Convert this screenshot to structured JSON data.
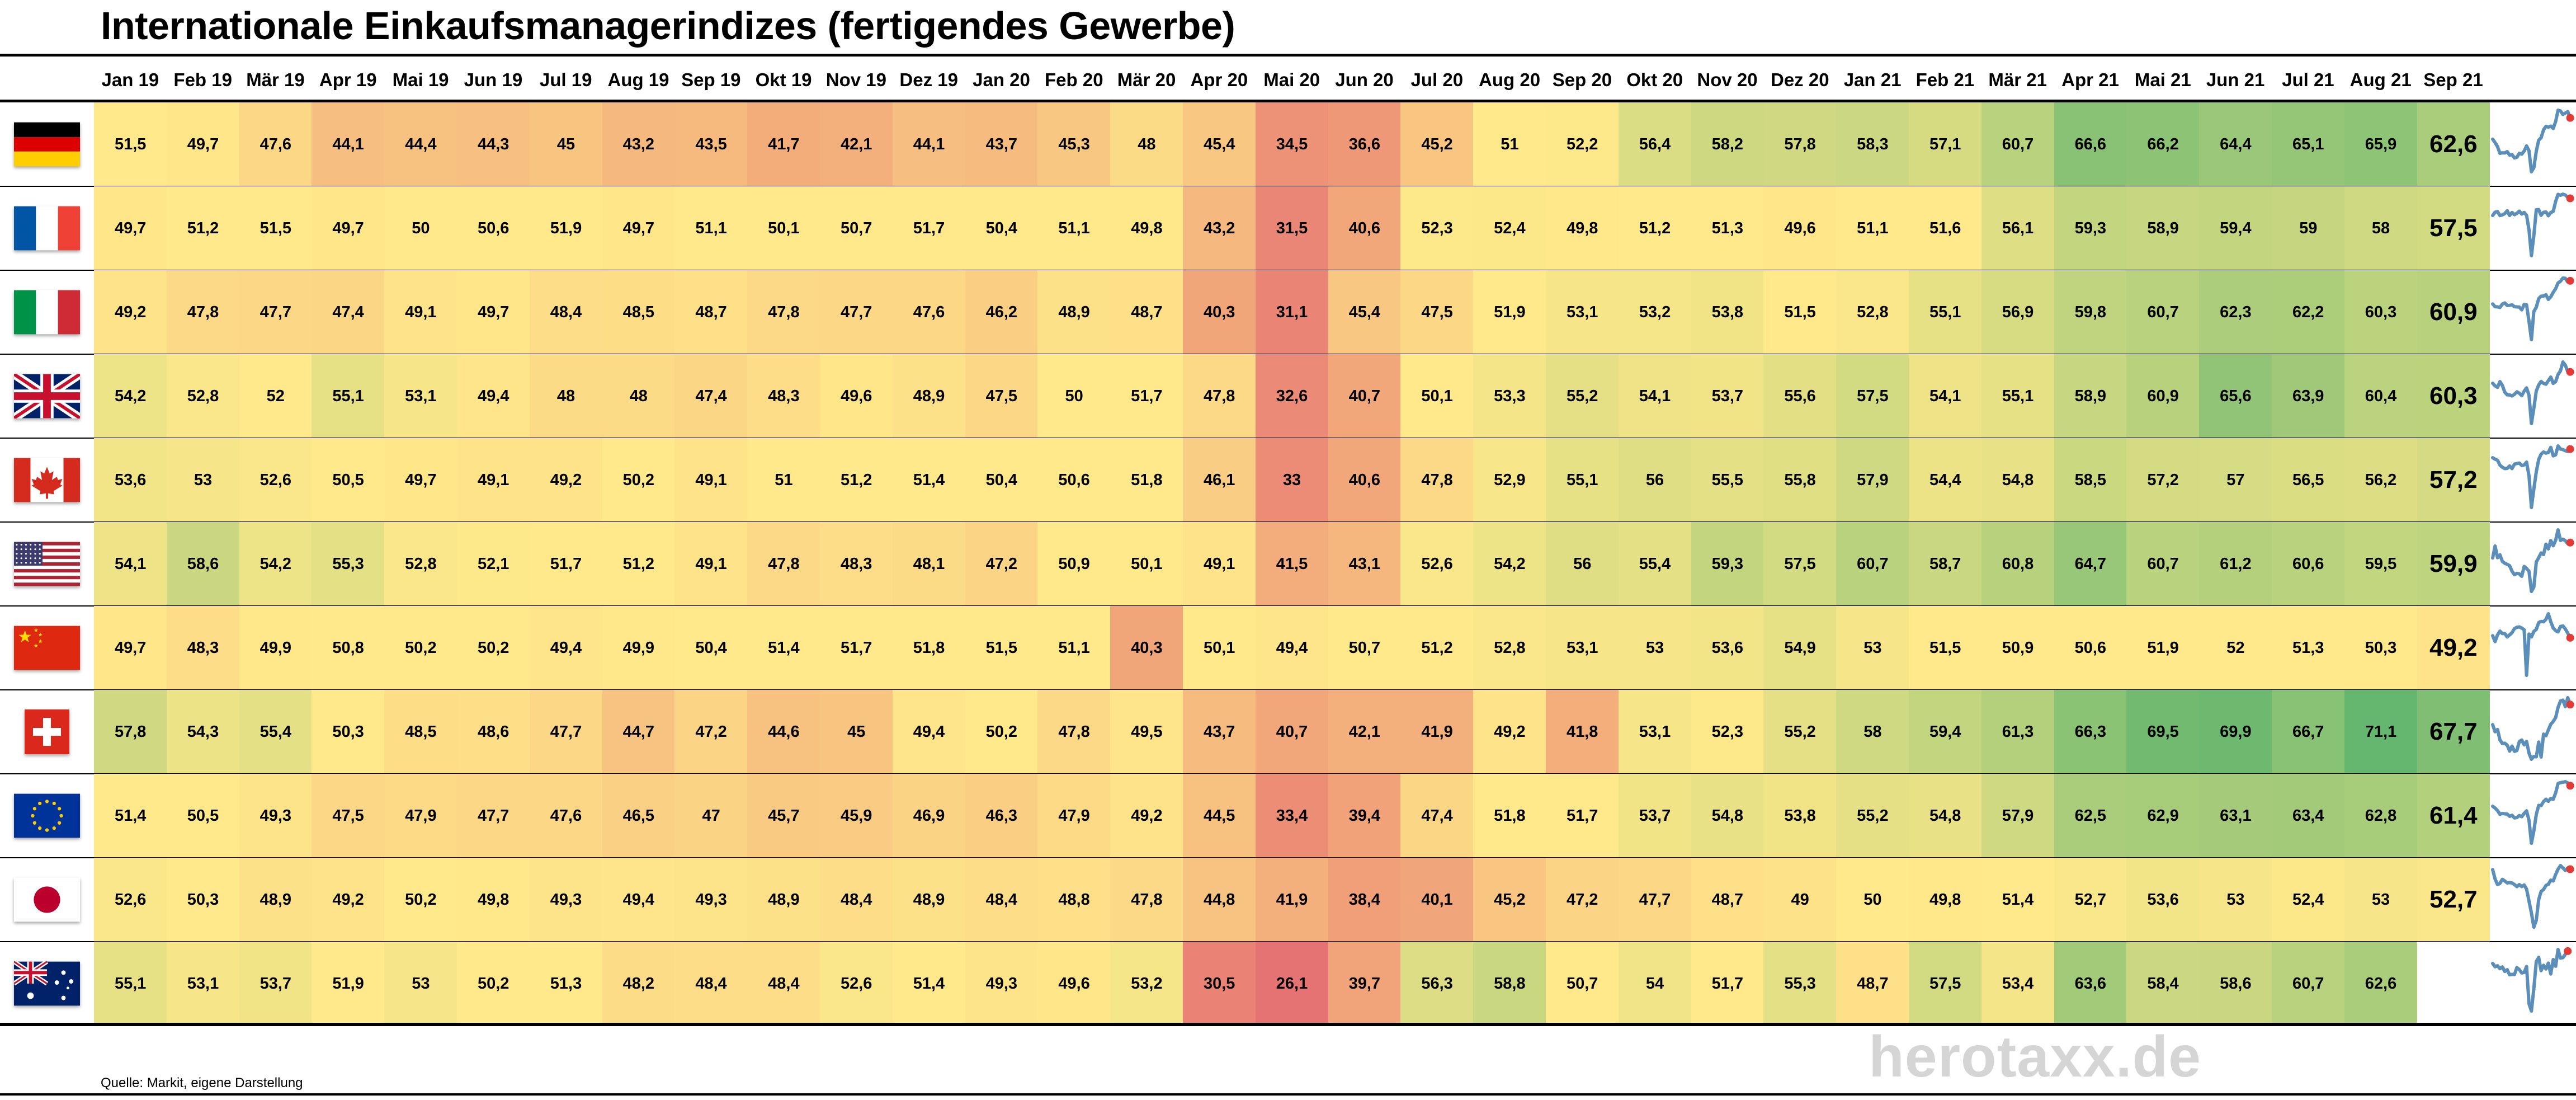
{
  "title": "Internationale Einkaufsmanagerindizes (fertigendes Gewerbe)",
  "source": "Quelle: Markit, eigene Darstellung",
  "watermark": "herotaxx.de",
  "chart_data": {
    "type": "table",
    "title": "Internationale Einkaufsmanagerindizes (fertigendes Gewerbe)",
    "months": [
      "Jan 19",
      "Feb 19",
      "Mär 19",
      "Apr 19",
      "Mai 19",
      "Jun 19",
      "Jul 19",
      "Aug 19",
      "Sep 19",
      "Okt 19",
      "Nov 19",
      "Dez 19",
      "Jan 20",
      "Feb 20",
      "Mär 20",
      "Apr 20",
      "Mai 20",
      "Jun 20",
      "Jul 20",
      "Aug 20",
      "Sep 20",
      "Okt 20",
      "Nov 20",
      "Dez 20",
      "Jan 21",
      "Feb 21",
      "Mär 21",
      "Apr 21",
      "Mai 21",
      "Jun 21",
      "Jul 21",
      "Aug 21",
      "Sep 21"
    ],
    "rows": [
      {
        "flag": "germany-flag-icon",
        "values": [
          "51,5",
          "49,7",
          "47,6",
          "44,1",
          "44,4",
          "44,3",
          "45",
          "43,2",
          "43,5",
          "41,7",
          "42,1",
          "44,1",
          "43,7",
          "45,3",
          "48",
          "45,4",
          "34,5",
          "36,6",
          "45,2",
          "51",
          "52,2",
          "56,4",
          "58,2",
          "57,8",
          "58,3",
          "57,1",
          "60,7",
          "66,6",
          "66,2",
          "64,4",
          "65,1",
          "65,9",
          "62,6"
        ]
      },
      {
        "flag": "france-flag-icon",
        "values": [
          "49,7",
          "51,2",
          "51,5",
          "49,7",
          "50",
          "50,6",
          "51,9",
          "49,7",
          "51,1",
          "50,1",
          "50,7",
          "51,7",
          "50,4",
          "51,1",
          "49,8",
          "43,2",
          "31,5",
          "40,6",
          "52,3",
          "52,4",
          "49,8",
          "51,2",
          "51,3",
          "49,6",
          "51,1",
          "51,6",
          "56,1",
          "59,3",
          "58,9",
          "59,4",
          "59",
          "58",
          "57,5"
        ]
      },
      {
        "flag": "italy-flag-icon",
        "values": [
          "49,2",
          "47,8",
          "47,7",
          "47,4",
          "49,1",
          "49,7",
          "48,4",
          "48,5",
          "48,7",
          "47,8",
          "47,7",
          "47,6",
          "46,2",
          "48,9",
          "48,7",
          "40,3",
          "31,1",
          "45,4",
          "47,5",
          "51,9",
          "53,1",
          "53,2",
          "53,8",
          "51,5",
          "52,8",
          "55,1",
          "56,9",
          "59,8",
          "60,7",
          "62,3",
          "62,2",
          "60,3",
          "60,9"
        ]
      },
      {
        "flag": "uk-flag-icon",
        "values": [
          "54,2",
          "52,8",
          "52",
          "55,1",
          "53,1",
          "49,4",
          "48",
          "48",
          "47,4",
          "48,3",
          "49,6",
          "48,9",
          "47,5",
          "50",
          "51,7",
          "47,8",
          "32,6",
          "40,7",
          "50,1",
          "53,3",
          "55,2",
          "54,1",
          "53,7",
          "55,6",
          "57,5",
          "54,1",
          "55,1",
          "58,9",
          "60,9",
          "65,6",
          "63,9",
          "60,4",
          "60,3"
        ]
      },
      {
        "flag": "canada-flag-icon",
        "values": [
          "53,6",
          "53",
          "52,6",
          "50,5",
          "49,7",
          "49,1",
          "49,2",
          "50,2",
          "49,1",
          "51",
          "51,2",
          "51,4",
          "50,4",
          "50,6",
          "51,8",
          "46,1",
          "33",
          "40,6",
          "47,8",
          "52,9",
          "55,1",
          "56",
          "55,5",
          "55,8",
          "57,9",
          "54,4",
          "54,8",
          "58,5",
          "57,2",
          "57",
          "56,5",
          "56,2",
          "57,2"
        ]
      },
      {
        "flag": "usa-flag-icon",
        "values": [
          "54,1",
          "58,6",
          "54,2",
          "55,3",
          "52,8",
          "52,1",
          "51,7",
          "51,2",
          "49,1",
          "47,8",
          "48,3",
          "48,1",
          "47,2",
          "50,9",
          "50,1",
          "49,1",
          "41,5",
          "43,1",
          "52,6",
          "54,2",
          "56",
          "55,4",
          "59,3",
          "57,5",
          "60,7",
          "58,7",
          "60,8",
          "64,7",
          "60,7",
          "61,2",
          "60,6",
          "59,5",
          "59,9"
        ]
      },
      {
        "flag": "china-flag-icon",
        "values": [
          "49,7",
          "48,3",
          "49,9",
          "50,8",
          "50,2",
          "50,2",
          "49,4",
          "49,9",
          "50,4",
          "51,4",
          "51,7",
          "51,8",
          "51,5",
          "51,1",
          "40,3",
          "50,1",
          "49,4",
          "50,7",
          "51,2",
          "52,8",
          "53,1",
          "53",
          "53,6",
          "54,9",
          "53",
          "51,5",
          "50,9",
          "50,6",
          "51,9",
          "52",
          "51,3",
          "50,3",
          "49,2"
        ]
      },
      {
        "flag": "switzerland-flag-icon",
        "values": [
          "57,8",
          "54,3",
          "55,4",
          "50,3",
          "48,5",
          "48,6",
          "47,7",
          "44,7",
          "47,2",
          "44,6",
          "45",
          "49,4",
          "50,2",
          "47,8",
          "49,5",
          "43,7",
          "40,7",
          "42,1",
          "41,9",
          "49,2",
          "41,8",
          "53,1",
          "52,3",
          "55,2",
          "58",
          "59,4",
          "61,3",
          "66,3",
          "69,5",
          "69,9",
          "66,7",
          "71,1",
          "67,7"
        ]
      },
      {
        "flag": "eu-flag-icon",
        "values": [
          "51,4",
          "50,5",
          "49,3",
          "47,5",
          "47,9",
          "47,7",
          "47,6",
          "46,5",
          "47",
          "45,7",
          "45,9",
          "46,9",
          "46,3",
          "47,9",
          "49,2",
          "44,5",
          "33,4",
          "39,4",
          "47,4",
          "51,8",
          "51,7",
          "53,7",
          "54,8",
          "53,8",
          "55,2",
          "54,8",
          "57,9",
          "62,5",
          "62,9",
          "63,1",
          "63,4",
          "62,8",
          "61,4"
        ]
      },
      {
        "flag": "japan-flag-icon",
        "values": [
          "52,6",
          "50,3",
          "48,9",
          "49,2",
          "50,2",
          "49,8",
          "49,3",
          "49,4",
          "49,3",
          "48,9",
          "48,4",
          "48,9",
          "48,4",
          "48,8",
          "47,8",
          "44,8",
          "41,9",
          "38,4",
          "40,1",
          "45,2",
          "47,2",
          "47,7",
          "48,7",
          "49",
          "50",
          "49,8",
          "51,4",
          "52,7",
          "53,6",
          "53",
          "52,4",
          "53",
          "52,7"
        ]
      },
      {
        "flag": "australia-flag-icon",
        "values": [
          "55,1",
          "53,1",
          "53,7",
          "51,9",
          "53",
          "50,2",
          "51,3",
          "48,2",
          "48,4",
          "48,4",
          "52,6",
          "51,4",
          "49,3",
          "49,6",
          "53,2",
          "30,5",
          "26,1",
          "39,7",
          "56,3",
          "58,8",
          "50,7",
          "54",
          "51,7",
          "55,3",
          "48,7",
          "57,5",
          "53,4",
          "63,6",
          "58,4",
          "58,6",
          "60,7",
          "62,6",
          ""
        ]
      }
    ]
  }
}
